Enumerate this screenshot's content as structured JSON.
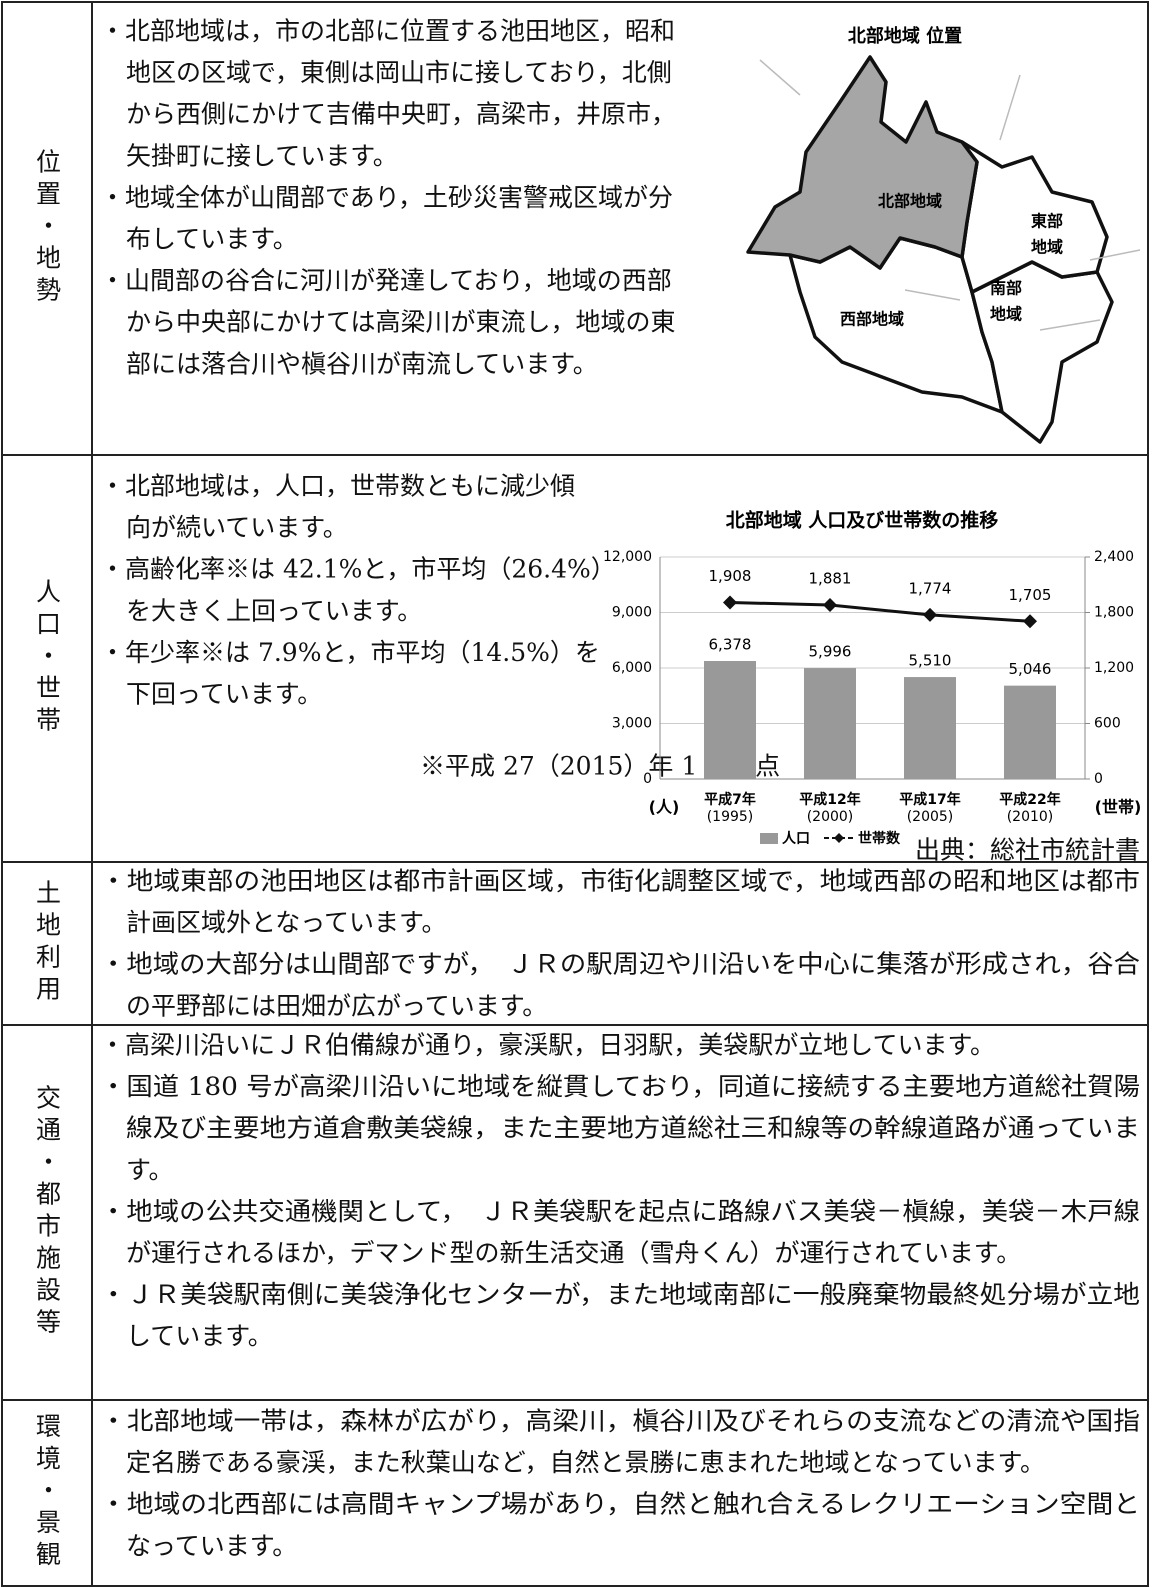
{
  "rows": [
    {
      "heading": "位置・地勢",
      "bullets": [
        [
          "・北部地域は，市の北部に位置する池田地区，昭和",
          "地区の区域で，東側は岡山市に接しており，北側",
          "から西側にかけて吉備中央町，高梁市，井原市，",
          "矢掛町に接しています。"
        ],
        [
          "・地域全体が山間部であり，土砂災害警戒区域が分",
          "布しています。"
        ],
        [
          "・山間部の谷合に河川が発達しており，地域の西部",
          "から中央部にかけては高梁川が東流し，地域の東",
          "部には落合川や槇谷川が南流しています。"
        ]
      ]
    },
    {
      "heading": "人口・世帯",
      "bullets": [
        [
          "・北部地域は，人口，世帯数ともに減少傾",
          "向が続いています。"
        ],
        [
          "・高齢化率※は 42.1%と，市平均（26.4%）",
          "を大きく上回っています。"
        ],
        [
          "・年少率※は 7.9%と，市平均（14.5%）を",
          "下回っています。"
        ]
      ]
    },
    {
      "heading": "土地利用",
      "bullets": [
        [
          "・地域東部の池田地区は都市計画区域，市街化調整区域で，地域西部の昭和地区は都市",
          "計画区域外となっています。"
        ],
        [
          "・地域の大部分は山間部ですが，　ＪＲの駅周辺や川沿いを中心に集落が形成され，谷合",
          "の平野部には田畑が広がっています。"
        ]
      ]
    },
    {
      "heading": "交通・都市施設等",
      "bullets": [
        [
          "・高梁川沿いにＪＲ伯備線が通り，豪渓駅，日羽駅，美袋駅が立地しています。"
        ],
        [
          "・国道 180 号が高梁川沿いに地域を縦貫しており，同道に接続する主要地方道総社賀陽",
          "線及び主要地方道倉敷美袋線，また主要地方道総社三和線等の幹線道路が通っていま",
          "す。"
        ],
        [
          "・地域の公共交通機関として，　ＪＲ美袋駅を起点に路線バス美袋－槇線，美袋－木戸線",
          "が運行されるほか，デマンド型の新生活交通（雪舟くん）が運行されています。"
        ],
        [
          "・ＪＲ美袋駅南側に美袋浄化センターが，また地域南部に一般廃棄物最終処分場が立地",
          "しています。"
        ]
      ]
    },
    {
      "heading": "環境・景観",
      "bullets": [
        [
          "・北部地域一帯は，森林が広がり，高梁川，槇谷川及びそれらの支流などの清流や国指",
          "定名勝である豪渓，また秋葉山など，自然と景勝に恵まれた地域となっています。"
        ],
        [
          "・地域の北西部には高間キャンプ場があり，自然と触れ合えるレクリエーション空間と",
          "なっています。"
        ]
      ]
    }
  ],
  "map": {
    "title": "北部地域 位置",
    "regions": [
      [
        "北部地域"
      ],
      [
        "東部",
        "地域"
      ],
      [
        "南部",
        "地域"
      ],
      [
        "西部地域"
      ]
    ]
  },
  "note": "※平成 27（2015）年 1 月時点",
  "source": "出典：総社市統計書",
  "chart_data": {
    "type": "bar",
    "title": "北部地域 人口及び世帯数の推移",
    "categories": [
      [
        "平成7年",
        "(1995)"
      ],
      [
        "平成12年",
        "(2000)"
      ],
      [
        "平成17年",
        "(2005)"
      ],
      [
        "平成22年",
        "(2010)"
      ]
    ],
    "series": [
      {
        "name": "人口",
        "type": "bar",
        "color": "#999999",
        "values": [
          6378,
          5996,
          5510,
          5046
        ],
        "value_labels": [
          "6,378",
          "5,996",
          "5,510",
          "5,046"
        ]
      },
      {
        "name": "世帯数",
        "type": "line",
        "axis": "y2",
        "color": "#111111",
        "values": [
          1908,
          1881,
          1774,
          1705
        ],
        "value_labels": [
          "1,908",
          "1,881",
          "1,774",
          "1,705"
        ]
      }
    ],
    "y_label": "(人)",
    "y2_label": "(世帯)",
    "ylim": [
      0,
      12000
    ],
    "yticks": [
      0,
      {
        "value": 3000,
        "label": "3,000"
      },
      {
        "value": 6000,
        "label": "6,000"
      },
      {
        "value": 9000,
        "label": "9,000"
      },
      {
        "value": 12000,
        "label": "12,000"
      }
    ],
    "y2lim": [
      0,
      2400
    ],
    "y2ticks": [
      0,
      600,
      {
        "value": 1200,
        "label": "1,200"
      },
      {
        "value": 1800,
        "label": "1,800"
      },
      {
        "value": 2400,
        "label": "2,400"
      }
    ],
    "grid": true,
    "legend": "bottom"
  }
}
